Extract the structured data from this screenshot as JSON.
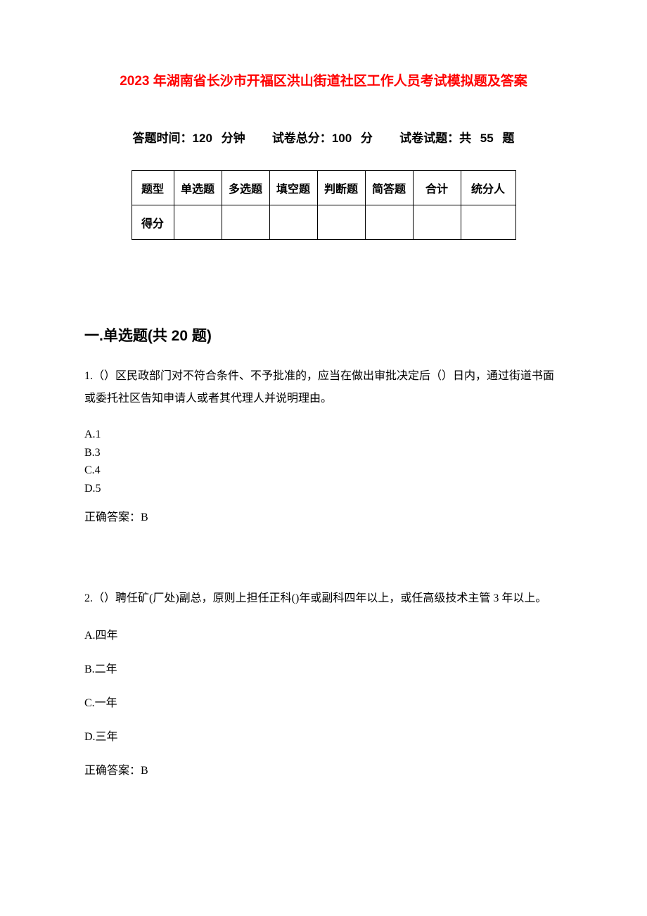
{
  "title": "2023 年湖南省长沙市开福区洪山街道社区工作人员考试模拟题及答案",
  "meta": {
    "time_label": "答题时间：",
    "time_value": "120 分钟",
    "total_label": "试卷总分：",
    "total_value": "100 分",
    "count_label": "试卷试题：",
    "count_value": "共 55 题"
  },
  "table": {
    "row1_label": "题型",
    "columns": [
      "单选题",
      "多选题",
      "填空题",
      "判断题",
      "简答题",
      "合计",
      "统分人"
    ],
    "row2_label": "得分"
  },
  "section1": {
    "heading": "一.单选题(共 20 题)",
    "q1": {
      "text": "1.（）区民政部门对不符合条件、不予批准的，应当在做出审批决定后（）日内，通过街道书面或委托社区告知申请人或者其代理人并说明理由。",
      "optA": "A.1",
      "optB": "B.3",
      "optC": "C.4",
      "optD": "D.5",
      "answer": "正确答案：B"
    },
    "q2": {
      "text": "2.（）聘任矿(厂处)副总，原则上担任正科()年或副科四年以上，或任高级技术主管 3 年以上。",
      "optA": "A.四年",
      "optB": "B.二年",
      "optC": "C.一年",
      "optD": "D.三年",
      "answer": "正确答案：B"
    }
  },
  "colors": {
    "title": "#ff0000",
    "text": "#000000",
    "background": "#ffffff",
    "border": "#000000"
  }
}
